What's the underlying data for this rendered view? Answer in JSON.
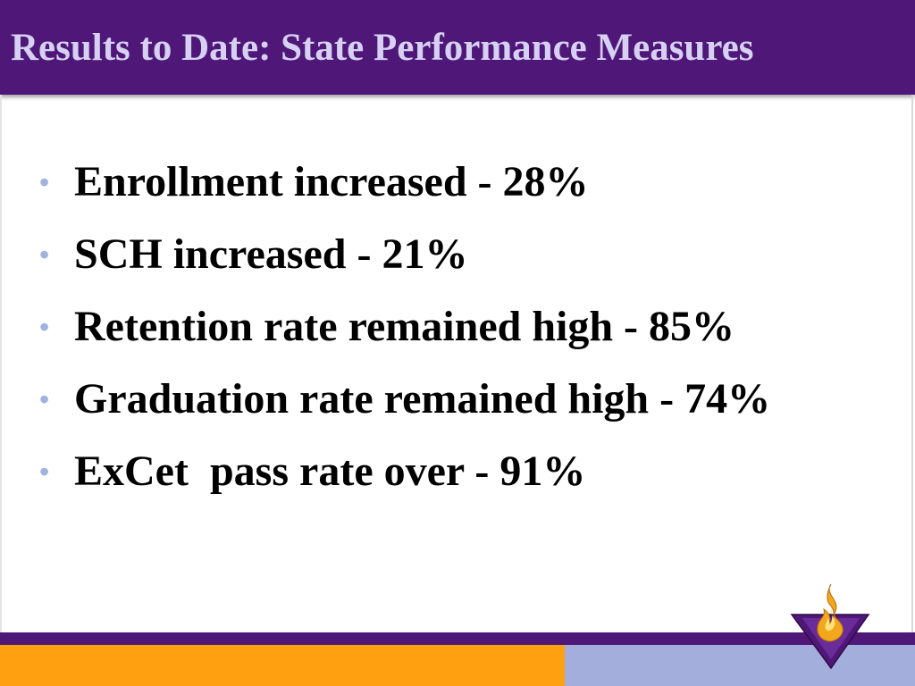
{
  "slide": {
    "title": "Results to Date: State Performance Measures",
    "bullets": [
      {
        "marker": "•",
        "text": "Enrollment increased - 28%"
      },
      {
        "marker": "•",
        "text": "SCH increased - 21%"
      },
      {
        "marker": "•",
        "text": "Retention rate remained high - 85%"
      },
      {
        "marker": "•",
        "text": "Graduation rate remained high - 74%"
      },
      {
        "marker": "•",
        "text": "ExCet  pass rate over - 91%"
      }
    ],
    "logo": "flame-chevron-logo"
  },
  "colors": {
    "title_bar": "#4f1878",
    "title_text": "#d6d0f2",
    "bullet_marker": "#9fb3de",
    "body_text": "#000000",
    "footer_gold": "#ffa010",
    "footer_lavender": "#a4aedc"
  }
}
